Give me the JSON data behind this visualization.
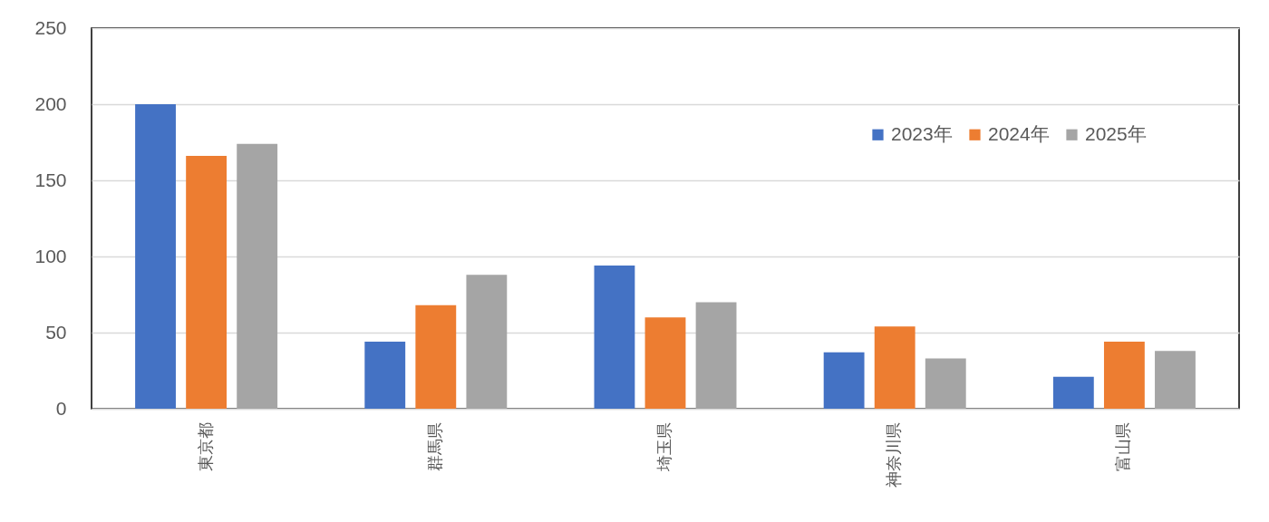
{
  "chart_data": {
    "type": "bar",
    "categories": [
      "東京都",
      "群馬県",
      "埼玉県",
      "神奈川県",
      "富山県"
    ],
    "series": [
      {
        "name": "2023年",
        "color": "#4472c4",
        "values": [
          200,
          44,
          94,
          37,
          21
        ]
      },
      {
        "name": "2024年",
        "color": "#ed7d31",
        "values": [
          166,
          68,
          60,
          54,
          44
        ]
      },
      {
        "name": "2025年",
        "color": "#a5a5a5",
        "values": [
          174,
          88,
          70,
          33,
          38
        ]
      }
    ],
    "ylim": [
      0,
      250
    ],
    "yticks": [
      0,
      50,
      100,
      150,
      200,
      250
    ],
    "grid": "y",
    "legend": "top right"
  }
}
